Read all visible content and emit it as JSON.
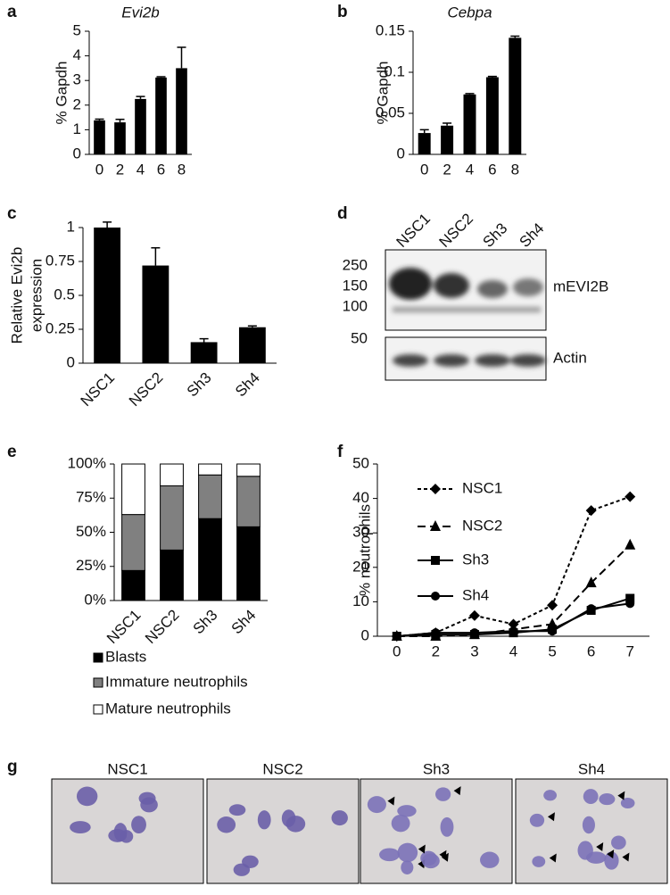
{
  "chart_data": [
    {
      "type": "bar",
      "panel_label": "a",
      "title": "Evi2b",
      "ylabel": [
        "% Gapdh"
      ],
      "categories": [
        "0",
        "2",
        "4",
        "6",
        "8"
      ],
      "values": [
        1.38,
        1.3,
        2.25,
        3.12,
        3.5
      ],
      "errors": [
        0.05,
        0.12,
        0.1,
        0.03,
        0.85
      ],
      "color": "#000000",
      "ylim": [
        0,
        5
      ],
      "yticks": [
        0,
        1,
        2,
        3,
        4,
        5
      ]
    },
    {
      "type": "bar",
      "panel_label": "b",
      "title": "Cebpa",
      "ylabel": [
        "% Gapdh"
      ],
      "categories": [
        "0",
        "2",
        "4",
        "6",
        "8"
      ],
      "values": [
        0.026,
        0.035,
        0.073,
        0.094,
        0.142
      ],
      "errors": [
        0.004,
        0.003,
        0.001,
        0.001,
        0.002
      ],
      "color": "#000000",
      "ylim": [
        0,
        0.15
      ],
      "yticks": [
        0,
        0.05,
        0.1,
        0.15
      ]
    },
    {
      "type": "bar",
      "panel_label": "c",
      "ylabel": [
        "Relative Evi2b",
        "expression"
      ],
      "categories": [
        "NSC1",
        "NSC2",
        "Sh3",
        "Sh4"
      ],
      "values": [
        1.0,
        0.72,
        0.155,
        0.265
      ],
      "errors": [
        0.04,
        0.13,
        0.025,
        0.01
      ],
      "color": "#000000",
      "ylim": [
        0,
        1
      ],
      "yticks": [
        0,
        0.25,
        0.5,
        0.75,
        1
      ]
    },
    {
      "type": "stacked_bar",
      "panel_label": "e",
      "categories": [
        "NSC1",
        "NSC2",
        "Sh3",
        "Sh4"
      ],
      "series": [
        {
          "name": "Blasts",
          "color": "#000000",
          "values": [
            22,
            37,
            60,
            54
          ]
        },
        {
          "name": "Immature neutrophils",
          "color": "#808080",
          "values": [
            41,
            47,
            32,
            37
          ]
        },
        {
          "name": "Mature neutrophils",
          "color": "#ffffff",
          "values": [
            37,
            16,
            8,
            9
          ]
        }
      ],
      "ylim": [
        0,
        100
      ],
      "yticks": [
        {
          "value": 0,
          "label": "0%"
        },
        {
          "value": 25,
          "label": "25%"
        },
        {
          "value": 50,
          "label": "50%"
        },
        {
          "value": 75,
          "label": "75%"
        },
        {
          "value": 100,
          "label": "100%"
        }
      ]
    },
    {
      "type": "line",
      "panel_label": "f",
      "ylabel": [
        "% neutrophils"
      ],
      "categories": [
        "0",
        "2",
        "3",
        "4",
        "5",
        "6",
        "7"
      ],
      "series": [
        {
          "name": "NSC1",
          "color": "#000000",
          "marker": "diamond",
          "dash": "dotted",
          "values": [
            0,
            1,
            6,
            3.5,
            9,
            36.5,
            40.5
          ]
        },
        {
          "name": "NSC2",
          "color": "#000000",
          "marker": "triangle",
          "dash": "dashed",
          "values": [
            0,
            0,
            0.5,
            2,
            3.5,
            15.5,
            26.5
          ]
        },
        {
          "name": "Sh3",
          "color": "#000000",
          "marker": "square",
          "dash": "solid",
          "values": [
            0,
            0.5,
            0.5,
            1,
            2,
            7.5,
            11
          ]
        },
        {
          "name": "Sh4",
          "color": "#000000",
          "marker": "circle",
          "dash": "solid",
          "values": [
            0,
            1,
            1,
            1.5,
            1.5,
            8,
            9.5
          ]
        }
      ],
      "ylim": [
        0,
        50
      ],
      "yticks": [
        0,
        10,
        20,
        30,
        40,
        50
      ]
    }
  ],
  "blot": {
    "panel_label": "d",
    "lanes": [
      "NSC1",
      "NSC2",
      "Sh3",
      "Sh4"
    ],
    "markers": [
      "250",
      "150",
      "100",
      "50"
    ],
    "bands": [
      "mEVI2B",
      "Actin"
    ]
  },
  "micrographs": {
    "panel_label": "g",
    "titles": [
      "NSC1",
      "NSC2",
      "Sh3",
      "Sh4"
    ]
  }
}
